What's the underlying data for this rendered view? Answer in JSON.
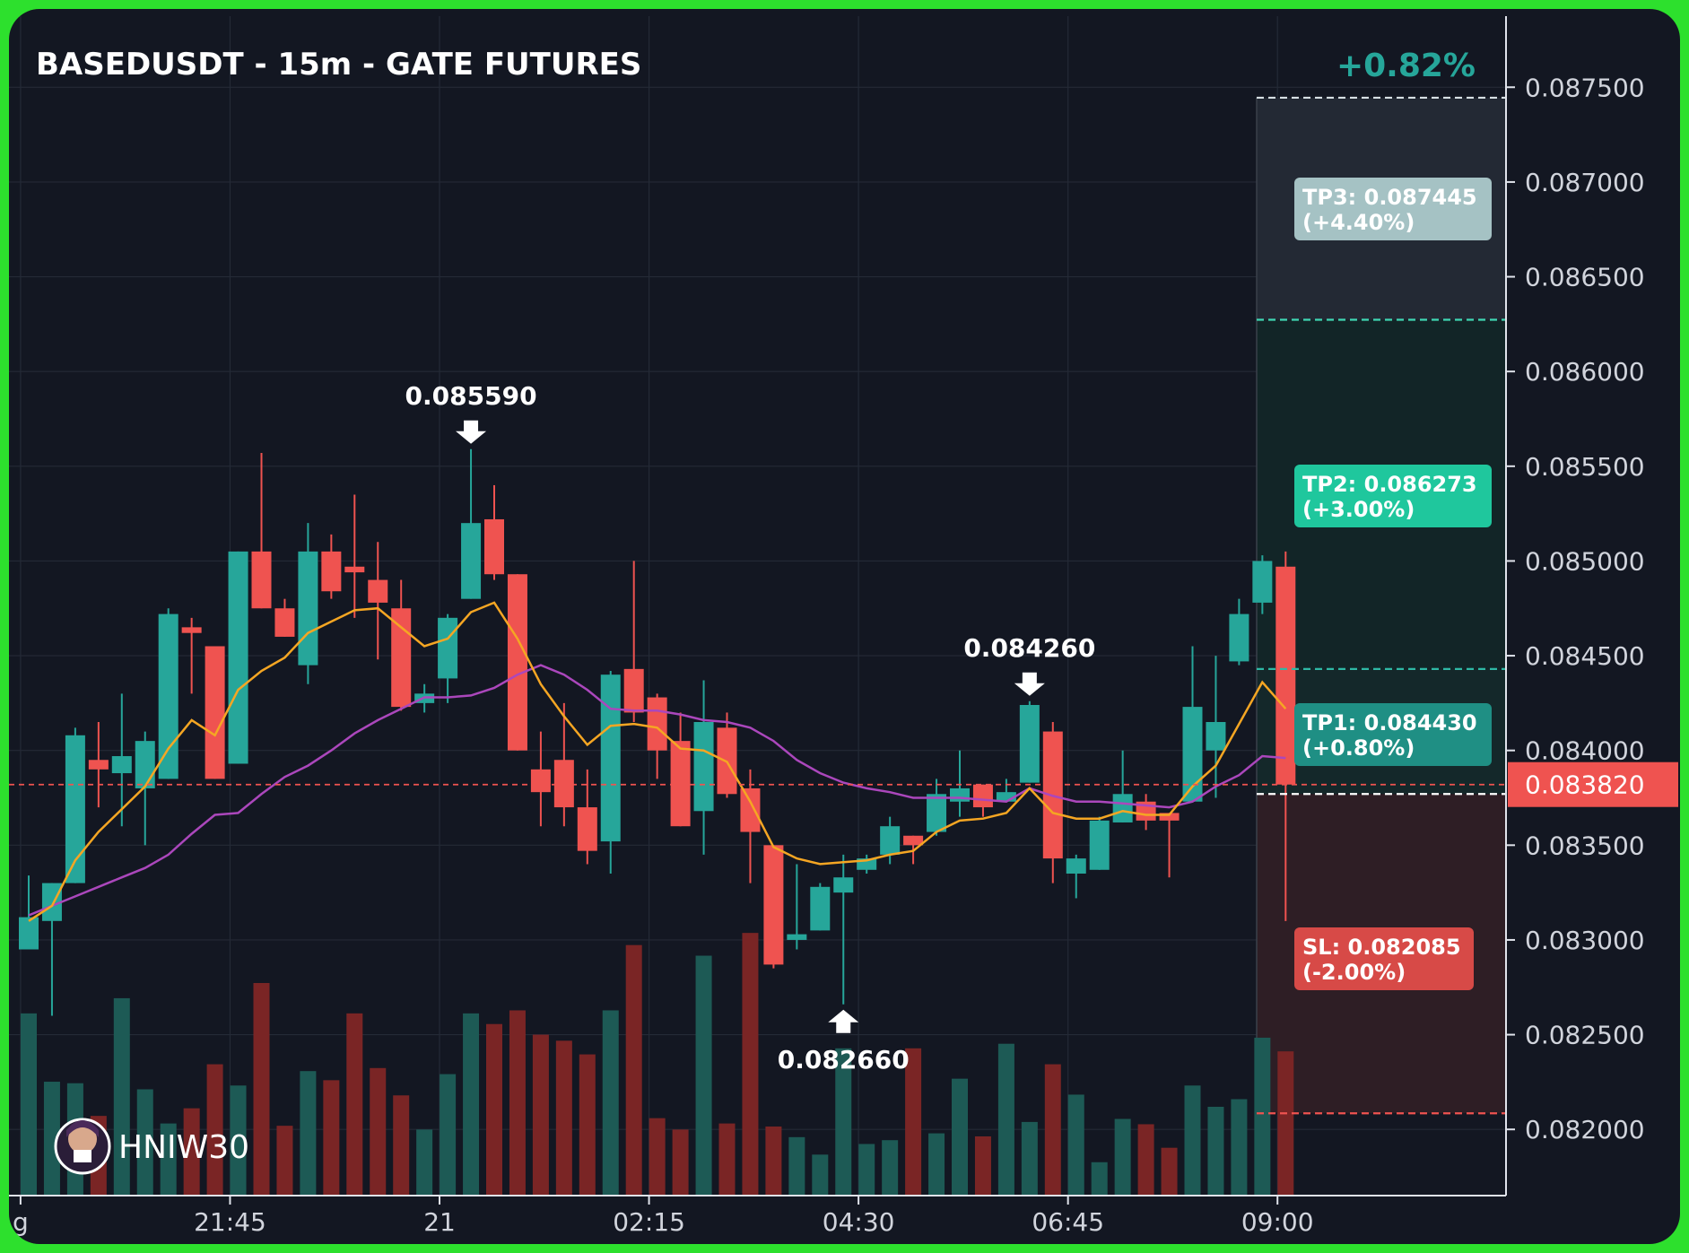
{
  "title": "BASEDUSDT - 15m - GATE FUTURES",
  "change_pct": "+0.82%",
  "brand": "HNIW30",
  "colors": {
    "up": "#26a69a",
    "down": "#ef5350",
    "ema_fast": "#f5a623",
    "ema_slow": "#ab47bc",
    "background": "#131722",
    "frame": "#2de02d"
  },
  "current_price": "0.083820",
  "targets": [
    {
      "label": "TP3: 0.087445",
      "sub": "(+4.40%)",
      "price": 0.087445,
      "color": "#a5c2c4"
    },
    {
      "label": "TP2: 0.086273",
      "sub": "(+3.00%)",
      "price": 0.086273,
      "color": "#1fc79d"
    },
    {
      "label": "TP1: 0.084430",
      "sub": "(+0.80%)",
      "price": 0.08443,
      "color": "#1f8f84"
    },
    {
      "label": "SL: 0.082085",
      "sub": "(-2.00%)",
      "price": 0.082085,
      "color": "#d74a47"
    }
  ],
  "entry_price": 0.08377,
  "annotations": [
    {
      "text": "0.085590",
      "type": "high",
      "index": 19,
      "price": 0.08559
    },
    {
      "text": "0.084260",
      "type": "high",
      "index": 43,
      "price": 0.08426
    },
    {
      "text": "0.082660",
      "type": "low",
      "index": 35,
      "price": 0.08266
    }
  ],
  "chart_data": {
    "type": "candlestick",
    "title": "BASEDUSDT - 15m - GATE FUTURES",
    "y_ticks": [
      "0.082000",
      "0.082500",
      "0.083000",
      "0.083500",
      "0.084000",
      "0.084500",
      "0.085000",
      "0.085500",
      "0.086000",
      "0.086500",
      "0.087000",
      "0.087500"
    ],
    "x_tick_labels": [
      "g",
      "21:45",
      "21",
      "02:15",
      "04:30",
      "06:45",
      "09:00"
    ],
    "ylim": [
      0.08166,
      0.08784
    ],
    "candles": [
      {
        "o": 0.08295,
        "h": 0.08334,
        "l": 0.083,
        "c": 0.08312,
        "v": 2400
      },
      {
        "o": 0.0831,
        "h": 0.0833,
        "l": 0.0826,
        "c": 0.0833,
        "v": 1500
      },
      {
        "o": 0.0833,
        "h": 0.08412,
        "l": 0.0833,
        "c": 0.08408,
        "v": 1480
      },
      {
        "o": 0.08395,
        "h": 0.08415,
        "l": 0.0837,
        "c": 0.0839,
        "v": 1050
      },
      {
        "o": 0.08388,
        "h": 0.0843,
        "l": 0.0836,
        "c": 0.08397,
        "v": 2600
      },
      {
        "o": 0.0838,
        "h": 0.0841,
        "l": 0.0835,
        "c": 0.08405,
        "v": 1400
      },
      {
        "o": 0.08385,
        "h": 0.08475,
        "l": 0.08385,
        "c": 0.08472,
        "v": 950
      },
      {
        "o": 0.08465,
        "h": 0.0847,
        "l": 0.0843,
        "c": 0.08462,
        "v": 1150
      },
      {
        "o": 0.08455,
        "h": 0.08455,
        "l": 0.08385,
        "c": 0.08385,
        "v": 1730
      },
      {
        "o": 0.08393,
        "h": 0.08505,
        "l": 0.08393,
        "c": 0.08505,
        "v": 1450
      },
      {
        "o": 0.08505,
        "h": 0.08557,
        "l": 0.08475,
        "c": 0.08475,
        "v": 2800
      },
      {
        "o": 0.08475,
        "h": 0.0848,
        "l": 0.0846,
        "c": 0.0846,
        "v": 920
      },
      {
        "o": 0.08445,
        "h": 0.0852,
        "l": 0.08435,
        "c": 0.08505,
        "v": 1640
      },
      {
        "o": 0.08505,
        "h": 0.08514,
        "l": 0.0848,
        "c": 0.08484,
        "v": 1520
      },
      {
        "o": 0.08497,
        "h": 0.08535,
        "l": 0.0847,
        "c": 0.08494,
        "v": 2400
      },
      {
        "o": 0.0849,
        "h": 0.0851,
        "l": 0.08448,
        "c": 0.08478,
        "v": 1680
      },
      {
        "o": 0.08475,
        "h": 0.0849,
        "l": 0.08421,
        "c": 0.08423,
        "v": 1320
      },
      {
        "o": 0.08425,
        "h": 0.08435,
        "l": 0.0842,
        "c": 0.0843,
        "v": 870
      },
      {
        "o": 0.08438,
        "h": 0.08472,
        "l": 0.08425,
        "c": 0.0847,
        "v": 1600
      },
      {
        "o": 0.0848,
        "h": 0.08559,
        "l": 0.0848,
        "c": 0.0852,
        "v": 2400
      },
      {
        "o": 0.08522,
        "h": 0.0854,
        "l": 0.0849,
        "c": 0.08493,
        "v": 2260
      },
      {
        "o": 0.08493,
        "h": 0.08493,
        "l": 0.084,
        "c": 0.084,
        "v": 2440
      },
      {
        "o": 0.0839,
        "h": 0.0841,
        "l": 0.0836,
        "c": 0.08378,
        "v": 2120
      },
      {
        "o": 0.08395,
        "h": 0.08425,
        "l": 0.0836,
        "c": 0.0837,
        "v": 2040
      },
      {
        "o": 0.0837,
        "h": 0.0839,
        "l": 0.0834,
        "c": 0.08347,
        "v": 1860
      },
      {
        "o": 0.08352,
        "h": 0.08442,
        "l": 0.08335,
        "c": 0.0844,
        "v": 2440
      },
      {
        "o": 0.08443,
        "h": 0.085,
        "l": 0.08415,
        "c": 0.0842,
        "v": 3300
      },
      {
        "o": 0.08428,
        "h": 0.0843,
        "l": 0.08385,
        "c": 0.084,
        "v": 1020
      },
      {
        "o": 0.08405,
        "h": 0.0842,
        "l": 0.0836,
        "c": 0.0836,
        "v": 870
      },
      {
        "o": 0.08368,
        "h": 0.08437,
        "l": 0.08345,
        "c": 0.08415,
        "v": 3160
      },
      {
        "o": 0.08412,
        "h": 0.0842,
        "l": 0.08375,
        "c": 0.08377,
        "v": 950
      },
      {
        "o": 0.0838,
        "h": 0.0839,
        "l": 0.0833,
        "c": 0.08357,
        "v": 3460
      },
      {
        "o": 0.0835,
        "h": 0.0835,
        "l": 0.08285,
        "c": 0.08287,
        "v": 910
      },
      {
        "o": 0.083,
        "h": 0.0834,
        "l": 0.08295,
        "c": 0.08303,
        "v": 770
      },
      {
        "o": 0.08305,
        "h": 0.0833,
        "l": 0.08305,
        "c": 0.08328,
        "v": 540
      },
      {
        "o": 0.08325,
        "h": 0.08345,
        "l": 0.08266,
        "c": 0.08333,
        "v": 1940
      },
      {
        "o": 0.08337,
        "h": 0.08345,
        "l": 0.08335,
        "c": 0.08343,
        "v": 680
      },
      {
        "o": 0.08345,
        "h": 0.08365,
        "l": 0.0834,
        "c": 0.0836,
        "v": 730
      },
      {
        "o": 0.08355,
        "h": 0.08355,
        "l": 0.0834,
        "c": 0.0835,
        "v": 1940
      },
      {
        "o": 0.08357,
        "h": 0.08385,
        "l": 0.08355,
        "c": 0.08377,
        "v": 820
      },
      {
        "o": 0.08373,
        "h": 0.084,
        "l": 0.08365,
        "c": 0.0838,
        "v": 1540
      },
      {
        "o": 0.08382,
        "h": 0.08382,
        "l": 0.08365,
        "c": 0.0837,
        "v": 780
      },
      {
        "o": 0.08373,
        "h": 0.08385,
        "l": 0.08375,
        "c": 0.08378,
        "v": 2000
      },
      {
        "o": 0.08383,
        "h": 0.08426,
        "l": 0.08383,
        "c": 0.08424,
        "v": 970
      },
      {
        "o": 0.0841,
        "h": 0.08415,
        "l": 0.0833,
        "c": 0.08343,
        "v": 1730
      },
      {
        "o": 0.08335,
        "h": 0.08345,
        "l": 0.08322,
        "c": 0.08343,
        "v": 1330
      },
      {
        "o": 0.08337,
        "h": 0.08365,
        "l": 0.08337,
        "c": 0.08363,
        "v": 440
      },
      {
        "o": 0.08362,
        "h": 0.084,
        "l": 0.08362,
        "c": 0.08377,
        "v": 1010
      },
      {
        "o": 0.08373,
        "h": 0.08377,
        "l": 0.08358,
        "c": 0.08363,
        "v": 940
      },
      {
        "o": 0.08367,
        "h": 0.08367,
        "l": 0.08333,
        "c": 0.08363,
        "v": 630
      },
      {
        "o": 0.08373,
        "h": 0.08455,
        "l": 0.08373,
        "c": 0.08423,
        "v": 1450
      },
      {
        "o": 0.084,
        "h": 0.0845,
        "l": 0.08375,
        "c": 0.08415,
        "v": 1170
      },
      {
        "o": 0.08447,
        "h": 0.0848,
        "l": 0.08445,
        "c": 0.08472,
        "v": 1270
      },
      {
        "o": 0.08478,
        "h": 0.08503,
        "l": 0.08472,
        "c": 0.085,
        "v": 2080
      },
      {
        "o": 0.08497,
        "h": 0.08505,
        "l": 0.0831,
        "c": 0.08382,
        "v": 1900
      }
    ],
    "ema_fast": [
      0.0831,
      0.08318,
      0.08342,
      0.08357,
      0.08369,
      0.08381,
      0.08401,
      0.08416,
      0.08408,
      0.08432,
      0.08442,
      0.08449,
      0.08462,
      0.08468,
      0.08474,
      0.08475,
      0.08465,
      0.08455,
      0.08459,
      0.08473,
      0.08478,
      0.08459,
      0.08435,
      0.08418,
      0.08403,
      0.08413,
      0.08414,
      0.08412,
      0.08401,
      0.084,
      0.08394,
      0.08373,
      0.08349,
      0.08343,
      0.0834,
      0.08341,
      0.08342,
      0.08345,
      0.08347,
      0.08357,
      0.08363,
      0.08364,
      0.08367,
      0.0838,
      0.08367,
      0.08364,
      0.08364,
      0.08368,
      0.08366,
      0.08366,
      0.08381,
      0.08392,
      0.08414,
      0.08436,
      0.08422
    ],
    "ema_slow": [
      0.08313,
      0.08318,
      0.08323,
      0.08328,
      0.08333,
      0.08338,
      0.08345,
      0.08356,
      0.08366,
      0.08367,
      0.08377,
      0.08386,
      0.08392,
      0.084,
      0.08409,
      0.08416,
      0.08422,
      0.08428,
      0.08428,
      0.08429,
      0.08433,
      0.0844,
      0.08445,
      0.0844,
      0.08432,
      0.08422,
      0.08421,
      0.08421,
      0.08419,
      0.08416,
      0.08415,
      0.08412,
      0.08405,
      0.08395,
      0.08388,
      0.08383,
      0.0838,
      0.08378,
      0.08375,
      0.08375,
      0.08375,
      0.08374,
      0.08373,
      0.0838,
      0.08376,
      0.08373,
      0.08373,
      0.08372,
      0.08371,
      0.0837,
      0.08373,
      0.08381,
      0.08387,
      0.08397,
      0.08396
    ]
  }
}
